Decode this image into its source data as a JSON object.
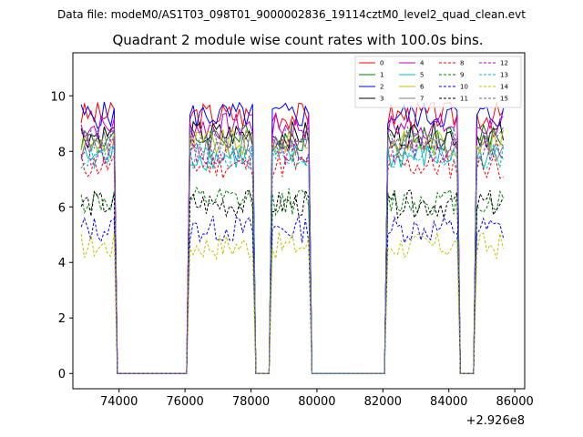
{
  "chart_data": {
    "type": "line",
    "suptitle": "Data file: modeM0/AS1T03_098T01_9000002836_19114cztM0_level2_quad_clean.evt",
    "title": "Quadrant 2 module wise count rates with 100.0s bins.",
    "xlabel": "",
    "ylabel": "",
    "x_offset_label": "+2.926e8",
    "xlim": [
      72600,
      86300
    ],
    "ylim": [
      -0.55,
      11.55
    ],
    "xticks": [
      74000,
      76000,
      78000,
      80000,
      82000,
      84000,
      86000
    ],
    "xtick_labels": [
      "74000",
      "76000",
      "78000",
      "80000",
      "82000",
      "84000",
      "86000"
    ],
    "yticks": [
      0,
      2,
      4,
      6,
      8,
      10
    ],
    "ytick_labels": [
      "0",
      "2",
      "4",
      "6",
      "8",
      "10"
    ],
    "grid": false,
    "legend_position": "top-right",
    "bin_size_s": 100,
    "segments": [
      {
        "start": 72850,
        "end": 73850
      },
      {
        "start": 76150,
        "end": 78050
      },
      {
        "start": 78650,
        "end": 79750
      },
      {
        "start": 82150,
        "end": 84250
      },
      {
        "start": 84850,
        "end": 85650
      }
    ],
    "gap_level": 0.0,
    "series": [
      {
        "name": "0",
        "color": "#ff0000",
        "dash": "solid",
        "level": 9.3
      },
      {
        "name": "1",
        "color": "#008000",
        "dash": "solid",
        "level": 8.5
      },
      {
        "name": "2",
        "color": "#0000ff",
        "dash": "solid",
        "level": 9.3
      },
      {
        "name": "3",
        "color": "#000000",
        "dash": "solid",
        "level": 8.6
      },
      {
        "name": "4",
        "color": "#c000c0",
        "dash": "solid",
        "level": 8.9
      },
      {
        "name": "5",
        "color": "#00c0c0",
        "dash": "solid",
        "level": 7.8
      },
      {
        "name": "6",
        "color": "#c0c000",
        "dash": "solid",
        "level": 8.3
      },
      {
        "name": "7",
        "color": "#808080",
        "dash": "solid",
        "level": 8.2
      },
      {
        "name": "8",
        "color": "#ff0000",
        "dash": "dashed",
        "level": 7.5
      },
      {
        "name": "9",
        "color": "#008000",
        "dash": "dashed",
        "level": 6.2
      },
      {
        "name": "10",
        "color": "#0000ff",
        "dash": "dashed",
        "level": 5.2
      },
      {
        "name": "11",
        "color": "#000000",
        "dash": "dashed",
        "level": 6.1
      },
      {
        "name": "12",
        "color": "#c000c0",
        "dash": "dashed",
        "level": 8.0
      },
      {
        "name": "13",
        "color": "#00c0c0",
        "dash": "dashed",
        "level": 7.8
      },
      {
        "name": "14",
        "color": "#c0c000",
        "dash": "dashed",
        "level": 4.6
      },
      {
        "name": "15",
        "color": "#6060c0",
        "dash": "dashed",
        "level": 8.4
      }
    ]
  }
}
